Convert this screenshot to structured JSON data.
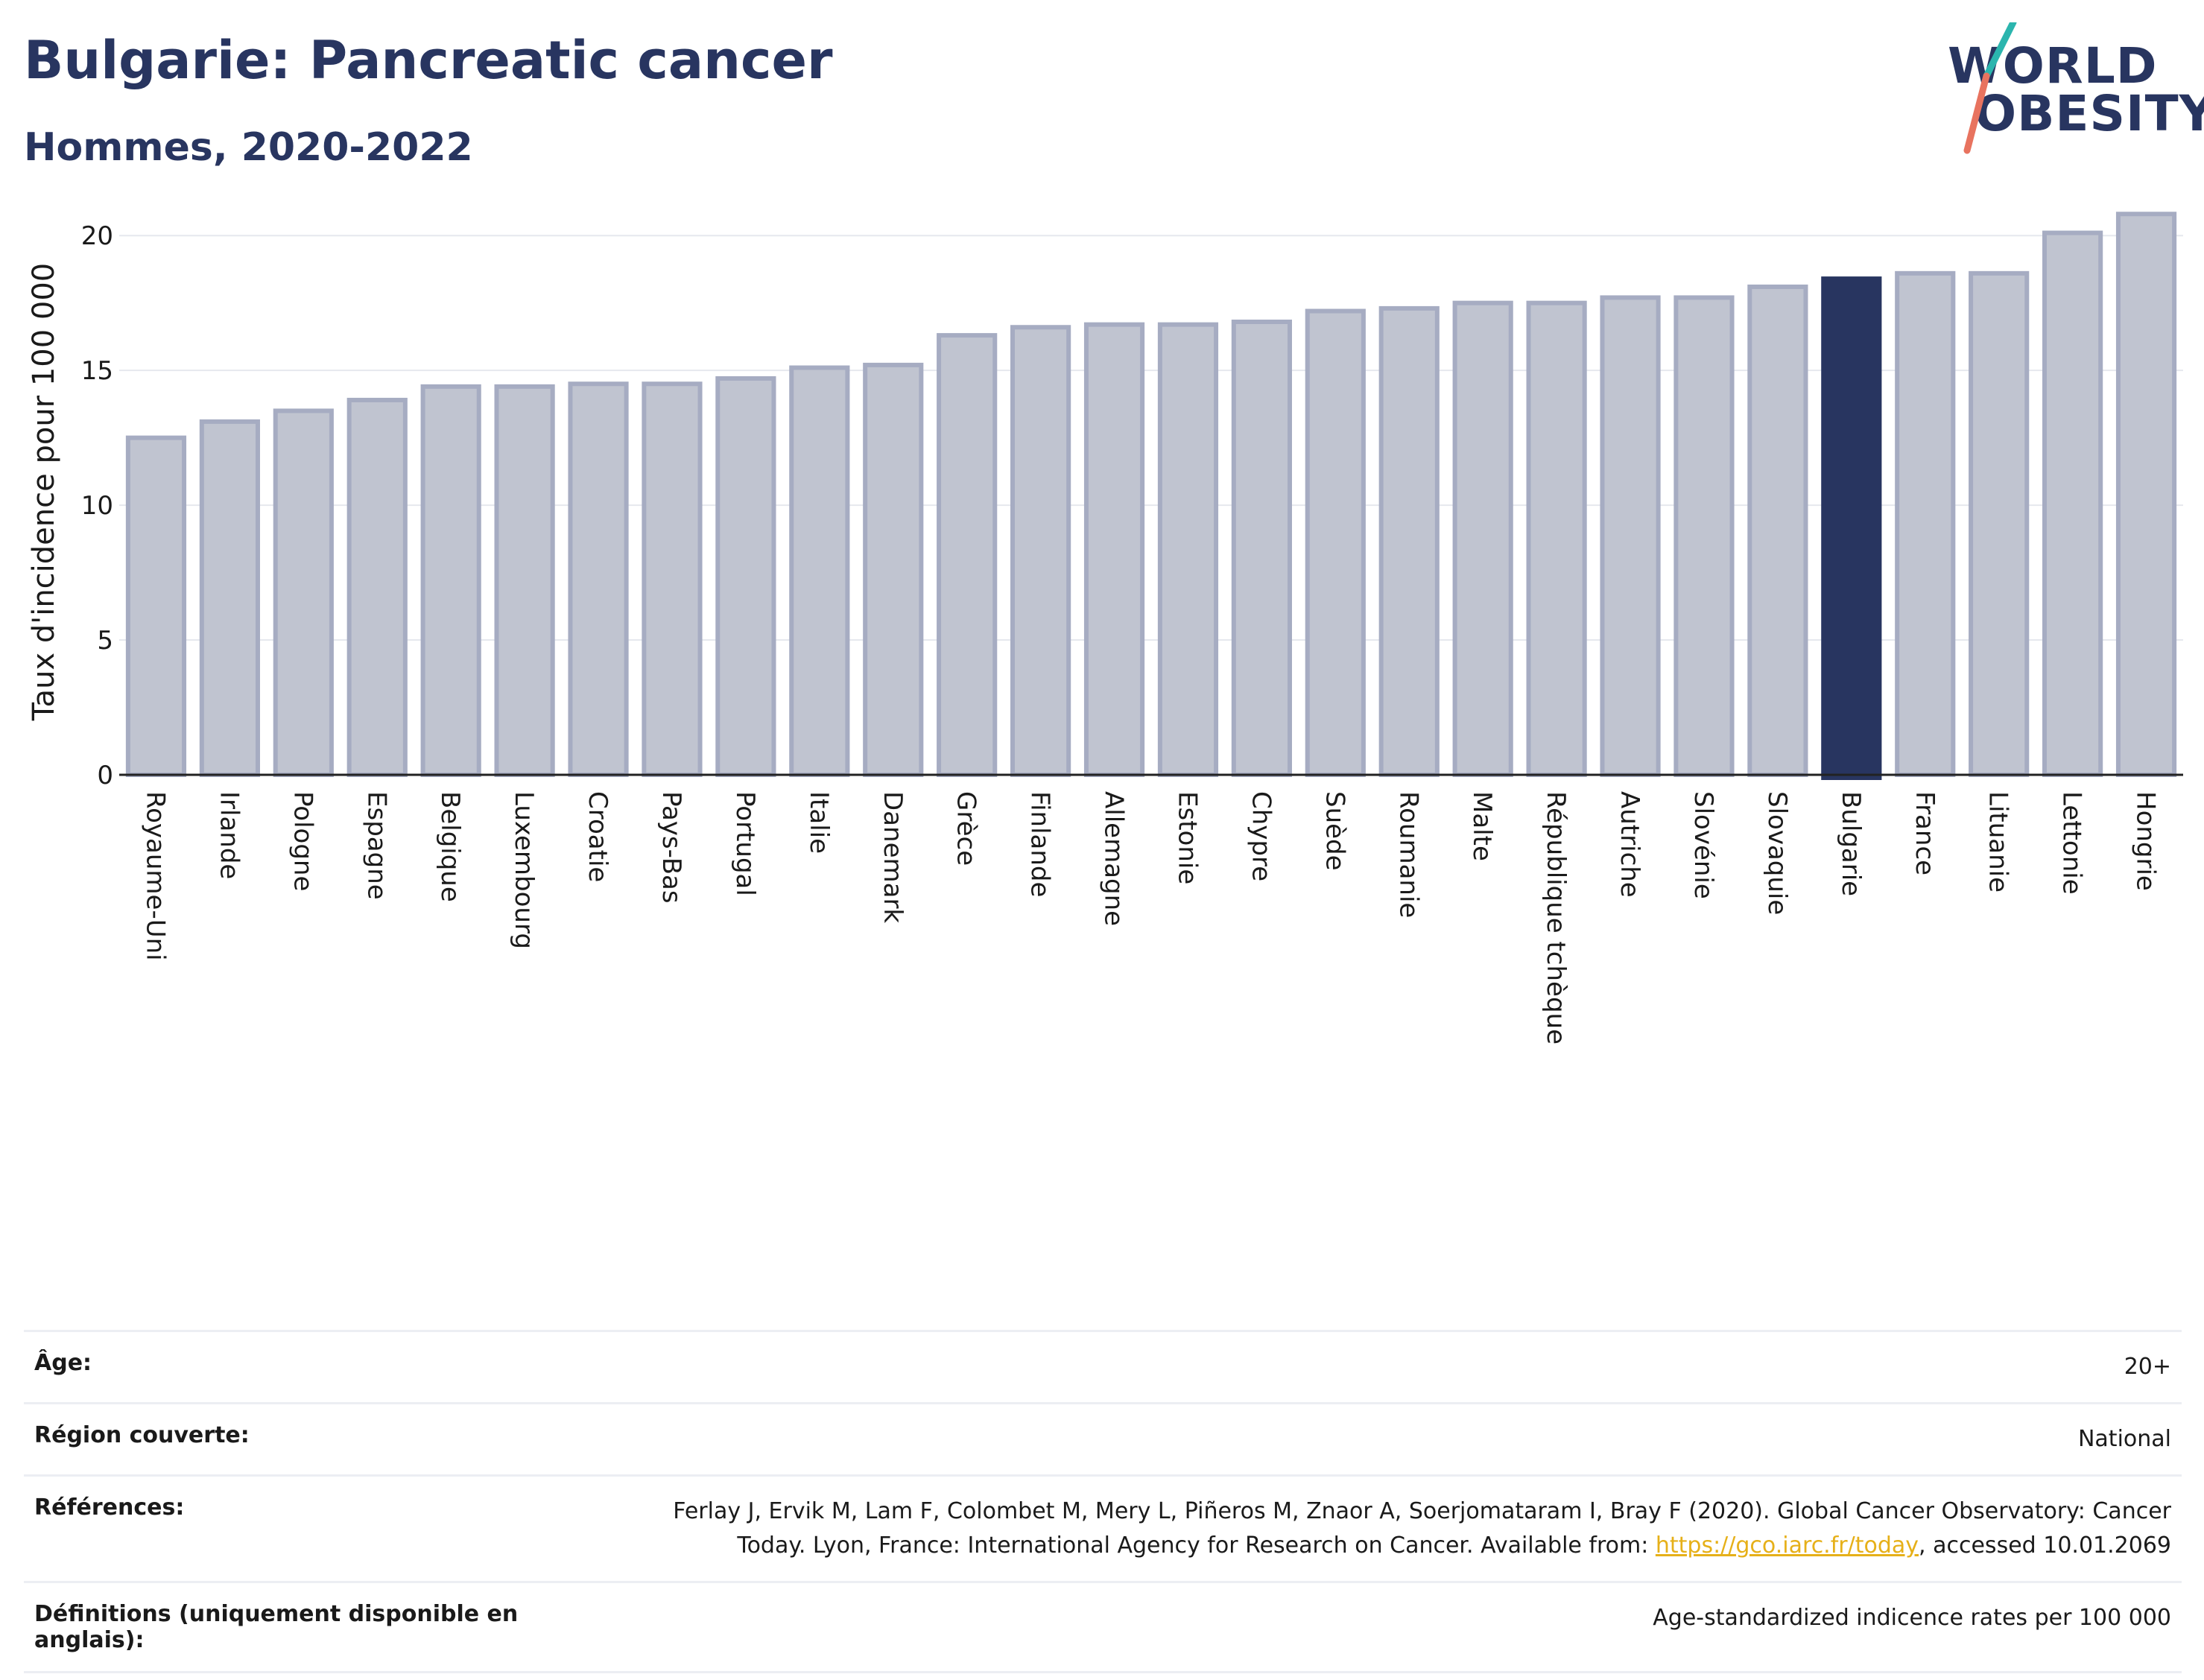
{
  "header": {
    "title": "Bulgarie: Pancreatic cancer",
    "subtitle": "Hommes, 2020-2022"
  },
  "logo": {
    "line1": "WORLD",
    "line2": "OBESITY",
    "colors": {
      "teal": "#2bb5ae",
      "coral": "#e8735f",
      "navy": "#283560"
    }
  },
  "chart_data": {
    "type": "bar",
    "ylabel": "Taux d'incidence pour 100 000",
    "ylim": [
      0,
      21
    ],
    "yticks": [
      0,
      5,
      10,
      15,
      20
    ],
    "grid": true,
    "highlight": "Bulgarie",
    "colors": {
      "bar": "#c0c4d0",
      "bar_edge": "#a6acc2",
      "highlight": "#283560"
    },
    "categories": [
      "Royaume-Uni",
      "Irlande",
      "Pologne",
      "Espagne",
      "Belgique",
      "Luxembourg",
      "Croatie",
      "Pays-Bas",
      "Portugal",
      "Italie",
      "Danemark",
      "Grèce",
      "Finlande",
      "Allemagne",
      "Estonie",
      "Chypre",
      "Suède",
      "Roumanie",
      "Malte",
      "République tchèque",
      "Autriche",
      "Slovénie",
      "Slovaquie",
      "Bulgarie",
      "France",
      "Lituanie",
      "Lettonie",
      "Hongrie"
    ],
    "values": [
      12.5,
      13.1,
      13.5,
      13.9,
      14.4,
      14.4,
      14.5,
      14.5,
      14.7,
      15.1,
      15.2,
      16.3,
      16.6,
      16.7,
      16.7,
      16.8,
      17.2,
      17.3,
      17.5,
      17.5,
      17.7,
      17.7,
      18.1,
      18.4,
      18.6,
      18.6,
      20.1,
      20.8
    ]
  },
  "meta": {
    "age_label": "Âge:",
    "age_value": "20+",
    "region_label": "Région couverte:",
    "region_value": "National",
    "refs_label": "Références:",
    "refs_text": "Ferlay J, Ervik M, Lam F, Colombet M, Mery L, Piñeros M, Znaor A, Soerjomataram I, Bray F (2020). Global Cancer Observatory: Cancer Today. Lyon, France: International Agency for Research on Cancer. Available from: ",
    "refs_link": "https://gco.iarc.fr/today",
    "refs_suffix": ", accessed 10.01.2069",
    "defs_label": "Définitions (uniquement disponible en anglais):",
    "defs_value": "Age-standardized indicence rates per 100 000"
  }
}
